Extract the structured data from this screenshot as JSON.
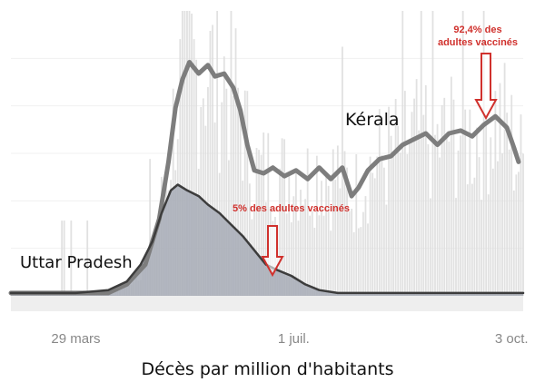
{
  "caption": "Décès par million d'habitants",
  "chart_data": {
    "type": "line",
    "title": "",
    "x_axis": {
      "type": "date",
      "range": [
        "2021-03-01",
        "2021-10-08"
      ],
      "tick_labels": [
        {
          "date": "2021-03-29",
          "label": "29 mars"
        },
        {
          "date": "2021-07-01",
          "label": "1 juil."
        },
        {
          "date": "2021-10-03",
          "label": "3 oct."
        }
      ]
    },
    "y_axis": {
      "visible": false,
      "range": [
        0,
        100
      ]
    },
    "grid": {
      "horizontal": true,
      "vertical": false
    },
    "legend": "none",
    "series": [
      {
        "name": "Kérala",
        "line_color": "#7d7d7d",
        "bar_color": "#dcdcdc",
        "daily_bars": true,
        "points": [
          [
            "2021-03-01",
            1
          ],
          [
            "2021-03-29",
            1
          ],
          [
            "2021-04-12",
            1
          ],
          [
            "2021-04-20",
            4
          ],
          [
            "2021-04-28",
            11
          ],
          [
            "2021-05-04",
            27
          ],
          [
            "2021-05-08",
            47
          ],
          [
            "2021-05-11",
            66
          ],
          [
            "2021-05-14",
            76
          ],
          [
            "2021-05-17",
            82
          ],
          [
            "2021-05-21",
            78
          ],
          [
            "2021-05-25",
            81
          ],
          [
            "2021-05-28",
            77
          ],
          [
            "2021-06-01",
            78
          ],
          [
            "2021-06-05",
            73
          ],
          [
            "2021-06-08",
            65
          ],
          [
            "2021-06-11",
            53
          ],
          [
            "2021-06-14",
            44
          ],
          [
            "2021-06-18",
            43
          ],
          [
            "2021-06-22",
            45
          ],
          [
            "2021-06-27",
            42
          ],
          [
            "2021-07-02",
            44
          ],
          [
            "2021-07-07",
            41
          ],
          [
            "2021-07-12",
            45
          ],
          [
            "2021-07-17",
            41
          ],
          [
            "2021-07-22",
            45
          ],
          [
            "2021-07-26",
            35
          ],
          [
            "2021-07-29",
            38
          ],
          [
            "2021-08-02",
            44
          ],
          [
            "2021-08-07",
            48
          ],
          [
            "2021-08-12",
            49
          ],
          [
            "2021-08-17",
            53
          ],
          [
            "2021-08-22",
            55
          ],
          [
            "2021-08-27",
            57
          ],
          [
            "2021-09-01",
            53
          ],
          [
            "2021-09-06",
            57
          ],
          [
            "2021-09-11",
            58
          ],
          [
            "2021-09-16",
            56
          ],
          [
            "2021-09-21",
            60
          ],
          [
            "2021-09-26",
            63
          ],
          [
            "2021-10-01",
            59
          ],
          [
            "2021-10-04",
            52
          ],
          [
            "2021-10-06",
            47
          ]
        ]
      },
      {
        "name": "Uttar Pradesh",
        "line_color": "#3c3c3c",
        "fill_color": "#a7acb6",
        "area": true,
        "points": [
          [
            "2021-03-01",
            1
          ],
          [
            "2021-03-29",
            1
          ],
          [
            "2021-04-12",
            2
          ],
          [
            "2021-04-20",
            5
          ],
          [
            "2021-04-26",
            11
          ],
          [
            "2021-05-01",
            19
          ],
          [
            "2021-05-05",
            29
          ],
          [
            "2021-05-09",
            37
          ],
          [
            "2021-05-12",
            39
          ],
          [
            "2021-05-16",
            37
          ],
          [
            "2021-05-21",
            35
          ],
          [
            "2021-05-25",
            32
          ],
          [
            "2021-05-30",
            29
          ],
          [
            "2021-06-04",
            25
          ],
          [
            "2021-06-09",
            21
          ],
          [
            "2021-06-14",
            16
          ],
          [
            "2021-06-19",
            11
          ],
          [
            "2021-06-24",
            9
          ],
          [
            "2021-06-30",
            7
          ],
          [
            "2021-07-06",
            4
          ],
          [
            "2021-07-12",
            2
          ],
          [
            "2021-07-20",
            1
          ],
          [
            "2021-10-08",
            1
          ]
        ]
      }
    ],
    "annotations": [
      {
        "text": "Kérala",
        "kind": "series_label"
      },
      {
        "text": "Uttar Pradesh",
        "kind": "series_label"
      },
      {
        "lines": [
          "5% des adultes vaccinés"
        ],
        "kind": "arrow_note",
        "color": "#d0312d",
        "date": "2021-07-01"
      },
      {
        "lines": [
          "92,4% des",
          "adultes vaccinés"
        ],
        "kind": "arrow_note",
        "color": "#d0312d",
        "date": "2021-10-01"
      }
    ]
  }
}
